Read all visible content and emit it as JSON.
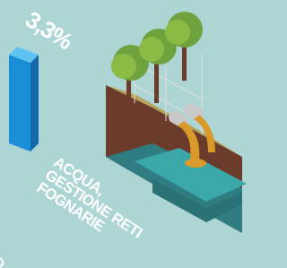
{
  "chart_data": {
    "type": "bar",
    "categories": [
      "ACQUA, GESTIONE RETI FOGNARIE"
    ],
    "values": [
      3.3
    ],
    "value_labels": [
      "3,3%"
    ],
    "color": "#1b8fd6"
  },
  "fragment_text": "D"
}
